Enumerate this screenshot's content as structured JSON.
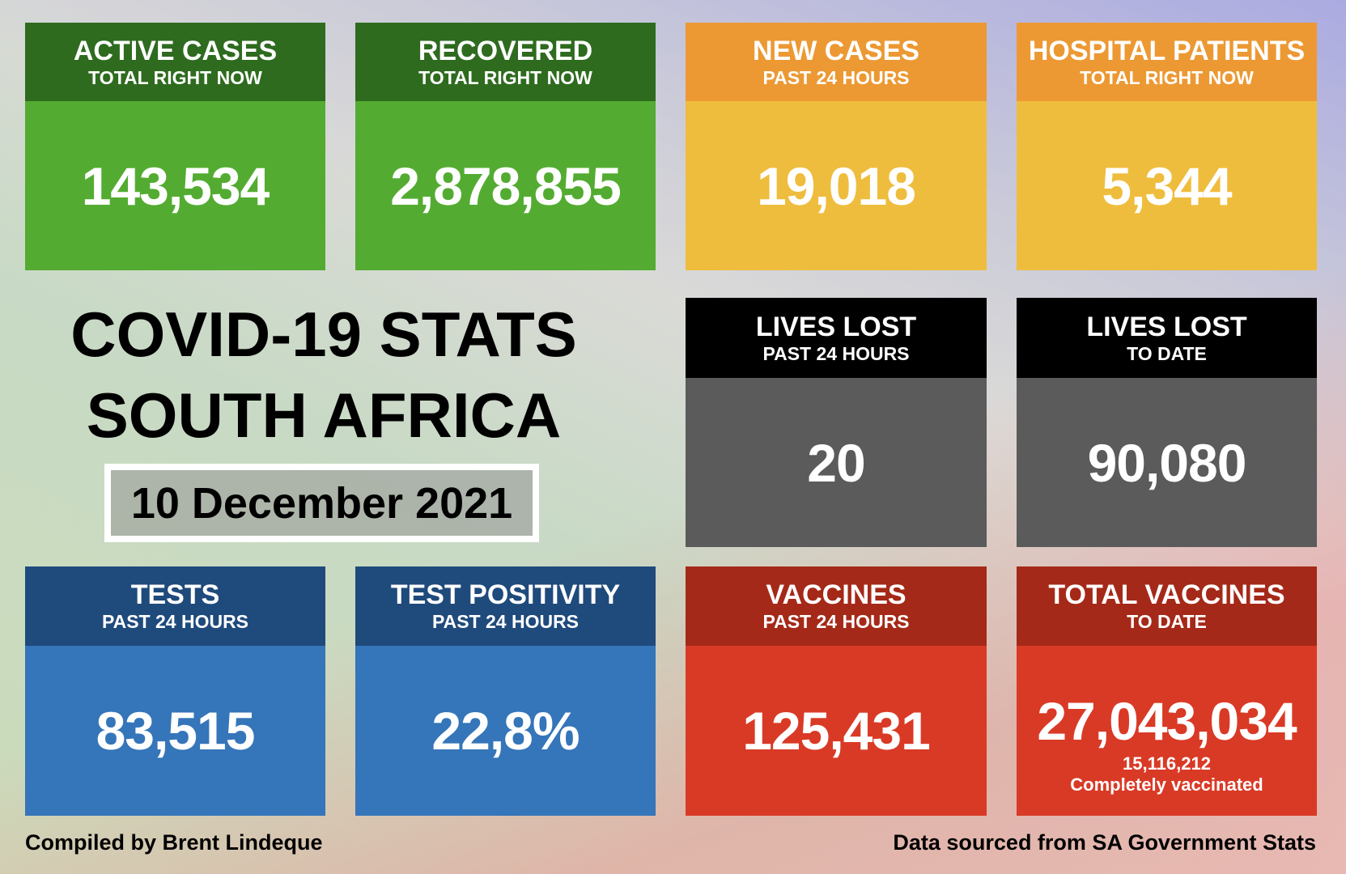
{
  "title": {
    "line1": "COVID-19 STATS",
    "line2": "SOUTH AFRICA",
    "date": "10 December 2021"
  },
  "cards": [
    {
      "title": "ACTIVE CASES",
      "subtitle": "TOTAL RIGHT NOW",
      "value": "143,534",
      "header_color": "#2e6b1f",
      "body_color": "#53ac31"
    },
    {
      "title": "RECOVERED",
      "subtitle": "TOTAL RIGHT NOW",
      "value": "2,878,855",
      "header_color": "#2e6b1f",
      "body_color": "#53ac31"
    },
    {
      "title": "NEW CASES",
      "subtitle": "PAST 24 HOURS",
      "value": "19,018",
      "header_color": "#ec9933",
      "body_color": "#efbd3d"
    },
    {
      "title": "HOSPITAL PATIENTS",
      "subtitle": "TOTAL RIGHT NOW",
      "value": "5,344",
      "header_color": "#ec9933",
      "body_color": "#efbd3d"
    },
    {
      "title": "LIVES LOST",
      "subtitle": "PAST 24 HOURS",
      "value": "20",
      "header_color": "#000000",
      "body_color": "#5b5b5b"
    },
    {
      "title": "LIVES LOST",
      "subtitle": "TO DATE",
      "value": "90,080",
      "header_color": "#000000",
      "body_color": "#5b5b5b"
    },
    {
      "title": "TESTS",
      "subtitle": "PAST 24 HOURS",
      "value": "83,515",
      "header_color": "#1f4a7c",
      "body_color": "#3575b9"
    },
    {
      "title": "TEST POSITIVITY",
      "subtitle": "PAST 24 HOURS",
      "value": "22,8%",
      "header_color": "#1f4a7c",
      "body_color": "#3575b9"
    },
    {
      "title": "VACCINES",
      "subtitle": "PAST 24 HOURS",
      "value": "125,431",
      "header_color": "#a52918",
      "body_color": "#d93a26"
    },
    {
      "title": "TOTAL VACCINES",
      "subtitle": "TO DATE",
      "value": "27,043,034",
      "extra_value": "15,116,212",
      "extra_label": "Completely vaccinated",
      "header_color": "#a52918",
      "body_color": "#d93a26"
    }
  ],
  "footer": {
    "left": "Compiled by Brent Lindeque",
    "right": "Data sourced from SA Government Stats"
  }
}
